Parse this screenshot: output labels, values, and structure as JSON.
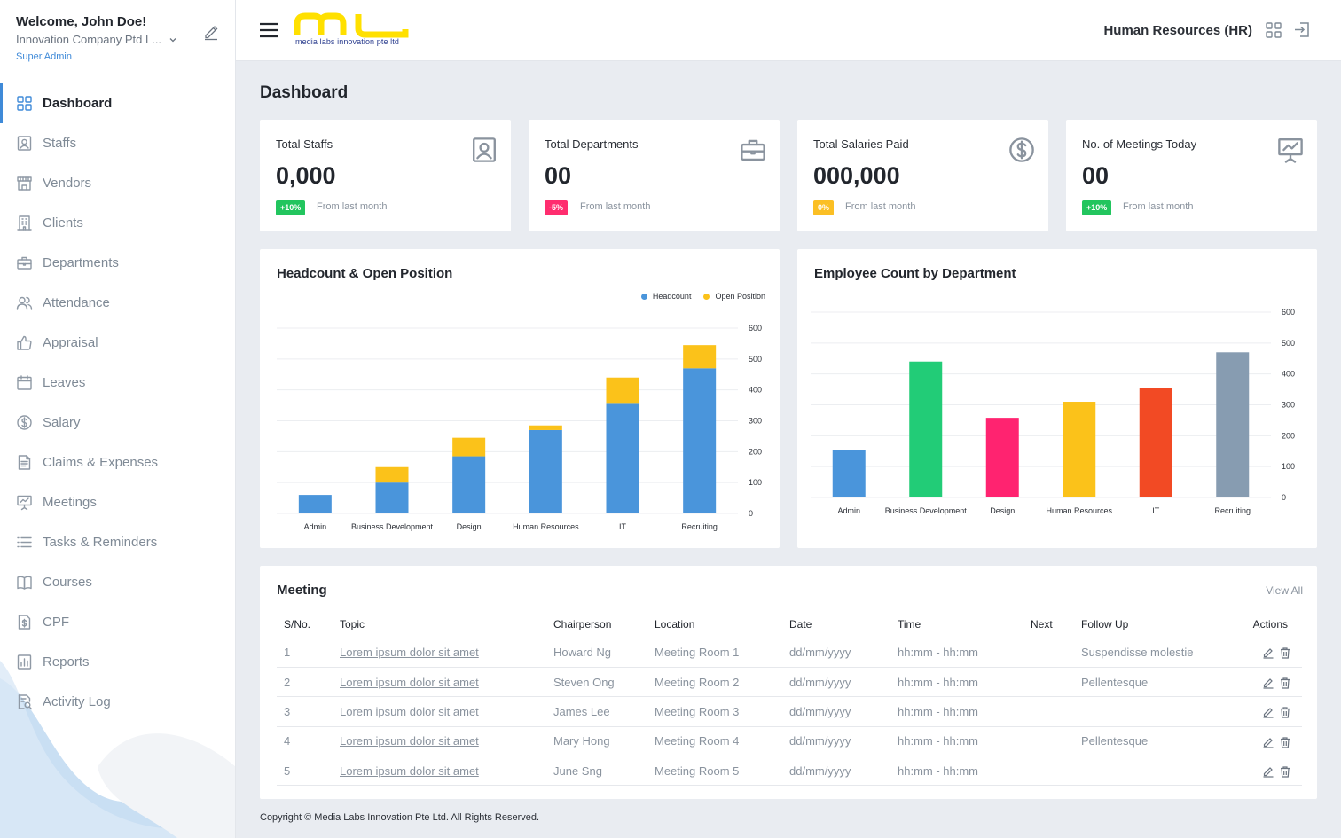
{
  "user": {
    "welcome": "Welcome, John Doe!",
    "company": "Innovation Company Ptd L...",
    "role": "Super Admin"
  },
  "sidebar": {
    "items": [
      {
        "label": "Dashboard",
        "icon": "grid-icon",
        "active": true
      },
      {
        "label": "Staffs",
        "icon": "person-badge-icon"
      },
      {
        "label": "Vendors",
        "icon": "storefront-icon"
      },
      {
        "label": "Clients",
        "icon": "building-icon"
      },
      {
        "label": "Departments",
        "icon": "briefcase-icon"
      },
      {
        "label": "Attendance",
        "icon": "users-icon"
      },
      {
        "label": "Appraisal",
        "icon": "thumbs-up-icon"
      },
      {
        "label": "Leaves",
        "icon": "calendar-icon"
      },
      {
        "label": "Salary",
        "icon": "dollar-circle-icon"
      },
      {
        "label": "Claims & Expenses",
        "icon": "document-icon"
      },
      {
        "label": "Meetings",
        "icon": "presentation-icon"
      },
      {
        "label": "Tasks & Reminders",
        "icon": "list-icon"
      },
      {
        "label": "Courses",
        "icon": "book-icon"
      },
      {
        "label": "CPF",
        "icon": "dollar-document-icon"
      },
      {
        "label": "Reports",
        "icon": "bar-report-icon"
      },
      {
        "label": "Activity Log",
        "icon": "search-document-icon"
      }
    ]
  },
  "header": {
    "logo_text": "media labs innovation pte ltd",
    "module": "Human Resources (HR)",
    "brand_color": "#ffe000"
  },
  "page_title": "Dashboard",
  "stats": [
    {
      "title": "Total Staffs",
      "value": "0,000",
      "badge": "+10%",
      "badge_color": "#22c55e",
      "note": "From last month",
      "icon": "person-badge-icon"
    },
    {
      "title": "Total Departments",
      "value": "00",
      "badge": "-5%",
      "badge_color": "#ff2d6f",
      "note": "From last month",
      "icon": "briefcase-icon"
    },
    {
      "title": "Total Salaries Paid",
      "value": "000,000",
      "badge": "0%",
      "badge_color": "#fbbf24",
      "note": "From last month",
      "icon": "dollar-circle-icon"
    },
    {
      "title": "No. of Meetings Today",
      "value": "00",
      "badge": "+10%",
      "badge_color": "#22c55e",
      "note": "From last month",
      "icon": "presentation-icon"
    }
  ],
  "chart_data": [
    {
      "type": "bar",
      "stacked": true,
      "title": "Headcount & Open Position",
      "categories": [
        "Admin",
        "Business Development",
        "Design",
        "Human Resources",
        "IT",
        "Recruiting"
      ],
      "series": [
        {
          "name": "Headcount",
          "color": "#4a95db",
          "values": [
            60,
            100,
            185,
            270,
            355,
            470
          ]
        },
        {
          "name": "Open Position",
          "color": "#fbc21a",
          "values": [
            0,
            50,
            60,
            15,
            85,
            75
          ]
        }
      ],
      "ylim": [
        0,
        600
      ],
      "yticks": [
        0,
        100,
        200,
        300,
        400,
        500,
        600
      ],
      "y_axis_side": "right",
      "legend": "top-right",
      "grid": true
    },
    {
      "type": "bar",
      "title": "Employee Count by Department",
      "categories": [
        "Admin",
        "Business Development",
        "Design",
        "Human Resources",
        "IT",
        "Recruiting"
      ],
      "values": [
        155,
        440,
        258,
        310,
        355,
        470
      ],
      "colors": [
        "#4a95db",
        "#22cc77",
        "#ff2370",
        "#fbc21a",
        "#f24a24",
        "#879cb1"
      ],
      "ylim": [
        0,
        600
      ],
      "yticks": [
        0,
        100,
        200,
        300,
        400,
        500,
        600
      ],
      "y_axis_side": "right",
      "grid": true
    }
  ],
  "meeting": {
    "title": "Meeting",
    "view_all": "View All",
    "columns": [
      "S/No.",
      "Topic",
      "Chairperson",
      "Location",
      "Date",
      "Time",
      "Next",
      "Follow Up",
      "Actions"
    ],
    "rows": [
      [
        "1",
        "Lorem ipsum dolor sit amet",
        "Howard Ng",
        "Meeting Room 1",
        "dd/mm/yyyy",
        "hh:mm - hh:mm",
        "",
        "Suspendisse molestie"
      ],
      [
        "2",
        "Lorem ipsum dolor sit amet",
        "Steven Ong",
        "Meeting Room 2",
        "dd/mm/yyyy",
        "hh:mm - hh:mm",
        "",
        "Pellentesque"
      ],
      [
        "3",
        "Lorem ipsum dolor sit amet",
        "James Lee",
        "Meeting Room 3",
        "dd/mm/yyyy",
        "hh:mm - hh:mm",
        "",
        ""
      ],
      [
        "4",
        "Lorem ipsum dolor sit amet",
        "Mary Hong",
        "Meeting Room 4",
        "dd/mm/yyyy",
        "hh:mm - hh:mm",
        "",
        "Pellentesque"
      ],
      [
        "5",
        "Lorem ipsum dolor sit amet",
        "June Sng",
        "Meeting Room 5",
        "dd/mm/yyyy",
        "hh:mm - hh:mm",
        "",
        ""
      ]
    ]
  },
  "footer": "Copyright © Media Labs Innovation Pte Ltd. All Rights Reserved."
}
